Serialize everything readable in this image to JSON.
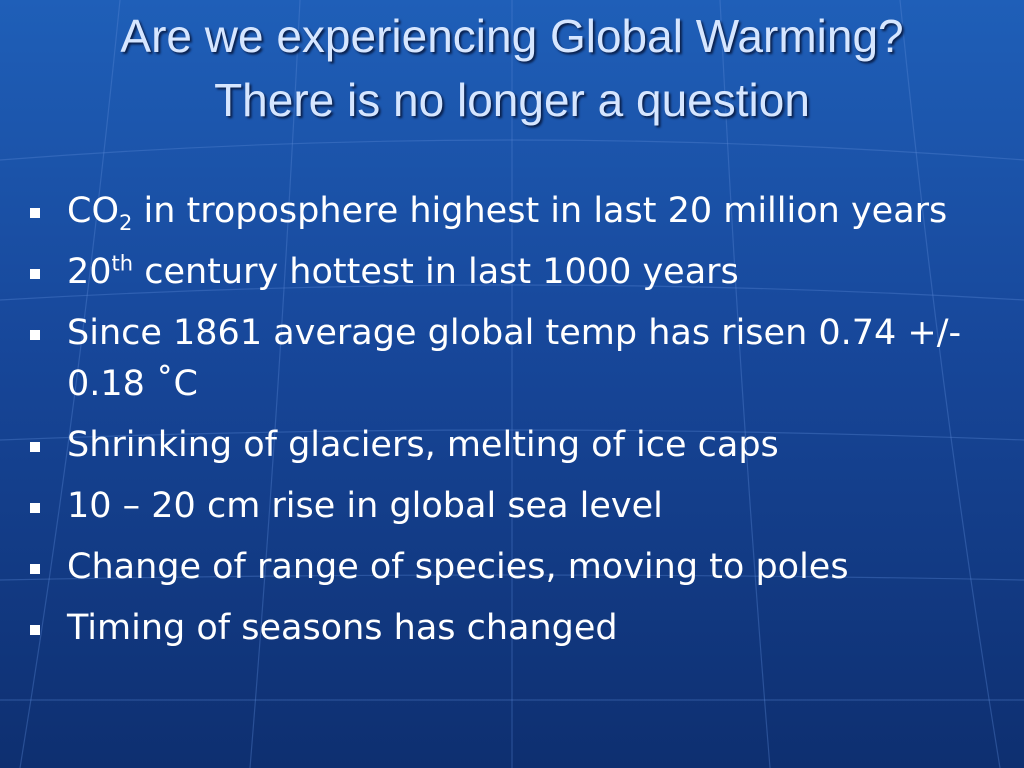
{
  "title": [
    "Are we experiencing Global Warming?",
    "There is no longer a question"
  ],
  "bullets": [
    [
      {
        "text": "CO"
      },
      {
        "sub": "2"
      },
      {
        "text": " in troposphere highest in last 20 million years"
      }
    ],
    [
      {
        "text": "20"
      },
      {
        "sup": "th"
      },
      {
        "text": " century hottest in last 1000 years"
      }
    ],
    [
      {
        "text": "Since 1861 average global temp has risen 0.74 +/- 0.18 ˚C"
      }
    ],
    [
      {
        "text": "Shrinking of glaciers, melting of ice caps"
      }
    ],
    [
      {
        "text": "10 – 20 cm rise in global sea level"
      }
    ],
    [
      {
        "text": "Change of range of species, moving to poles"
      }
    ],
    [
      {
        "text": "Timing of seasons has changed"
      }
    ]
  ]
}
